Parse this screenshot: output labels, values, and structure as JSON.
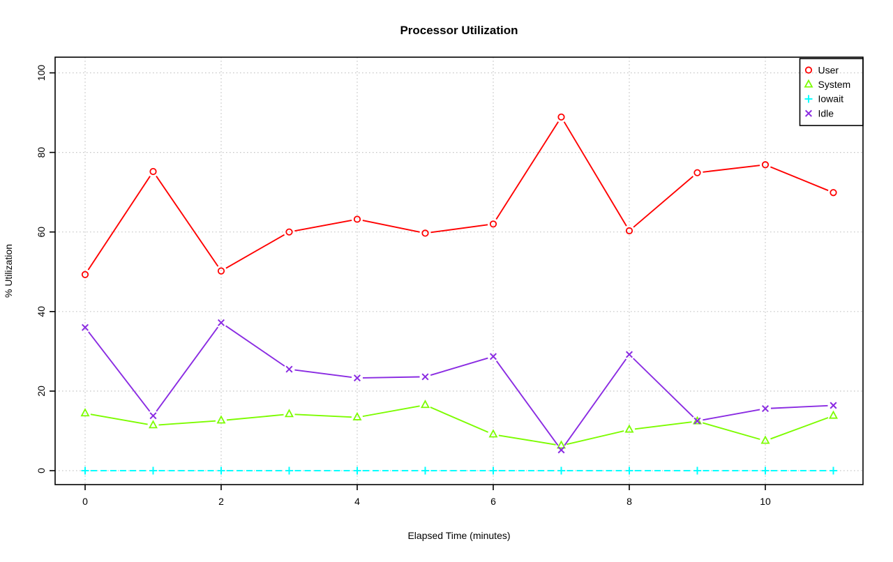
{
  "chart_data": {
    "type": "line",
    "title": "Processor Utilization",
    "xlabel": "Elapsed Time (minutes)",
    "ylabel": "% Utilization",
    "x": [
      0,
      1,
      2,
      3,
      4,
      5,
      6,
      7,
      8,
      9,
      10,
      11
    ],
    "xlim": [
      -0.44,
      11.44
    ],
    "ylim": [
      -4,
      104
    ],
    "x_ticks": [
      0,
      2,
      4,
      6,
      8,
      10
    ],
    "y_ticks": [
      0,
      20,
      40,
      60,
      80,
      100
    ],
    "grid": true,
    "grid_style": "dotted",
    "legend_position": "top-right",
    "legend": [
      "User",
      "System",
      "Iowait",
      "Idle"
    ],
    "series": [
      {
        "name": "User",
        "color": "#ff0000",
        "marker": "circle",
        "line_style": "solid",
        "values": [
          49.3,
          75.2,
          50.2,
          60.0,
          63.2,
          59.7,
          62.0,
          88.9,
          60.3,
          74.9,
          76.9,
          69.9
        ]
      },
      {
        "name": "System",
        "color": "#7cfc00",
        "marker": "triangle",
        "line_style": "solid",
        "values": [
          14.4,
          11.4,
          12.6,
          14.2,
          13.4,
          16.5,
          9.1,
          6.3,
          10.3,
          12.4,
          7.5,
          13.8
        ]
      },
      {
        "name": "Iowait",
        "color": "#00ffff",
        "marker": "plus",
        "line_style": "dashed",
        "values": [
          0,
          0,
          0,
          0,
          0,
          0,
          0,
          0,
          0,
          0,
          0,
          0
        ]
      },
      {
        "name": "Idle",
        "color": "#8a2be2",
        "marker": "x",
        "line_style": "solid",
        "values": [
          36.0,
          13.8,
          37.2,
          25.5,
          23.3,
          23.6,
          28.7,
          5.2,
          29.2,
          12.5,
          15.6,
          16.4
        ]
      }
    ]
  }
}
